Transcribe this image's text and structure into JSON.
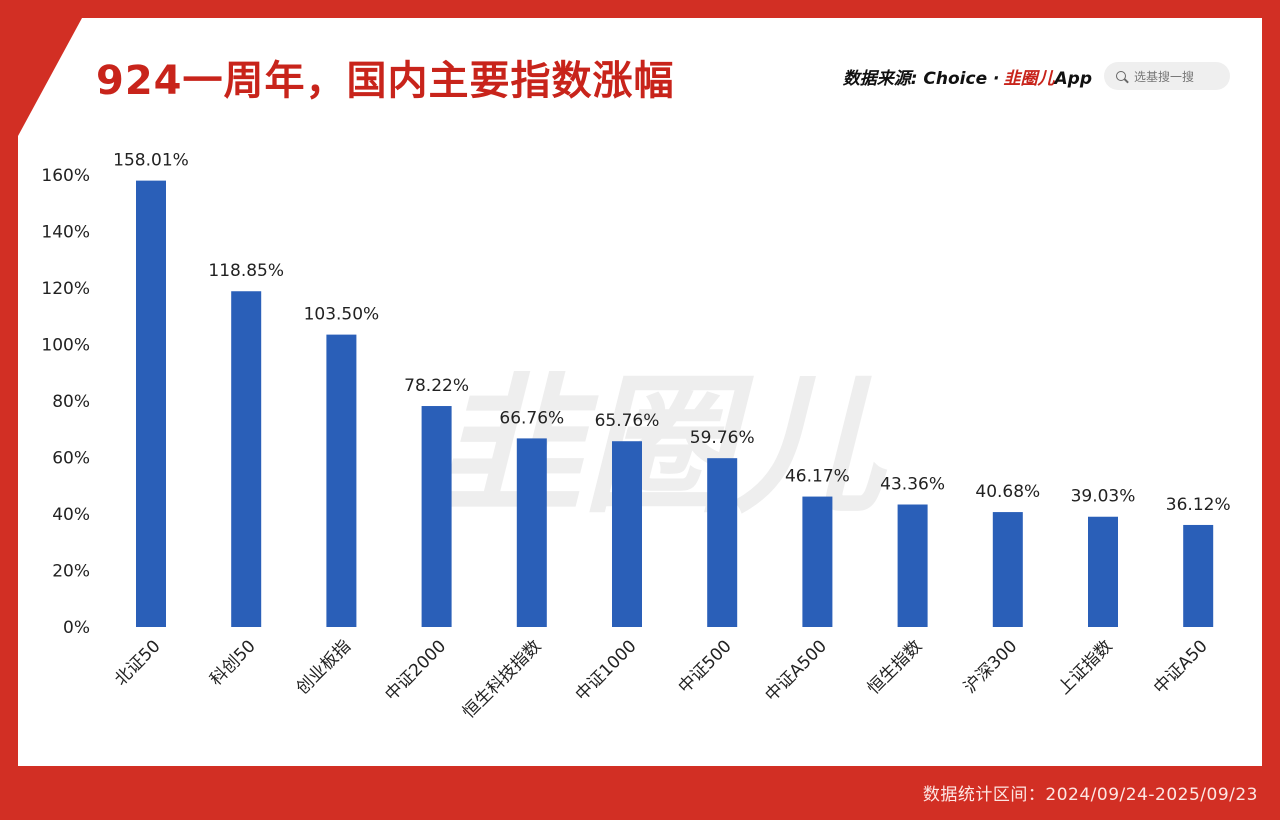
{
  "header": {
    "title": "924一周年，国内主要指数涨幅",
    "source_label": "数据来源: Choice ·",
    "source_brand_red": "韭圈儿",
    "source_brand_rest": "App",
    "search_placeholder": "选基搜一搜",
    "search_icon": "search-icon"
  },
  "footer": {
    "period": "数据统计区间：2024/09/24-2025/09/23"
  },
  "watermark": "韭圈儿",
  "colors": {
    "bar": "#2a5fb8",
    "accent": "#c8241b",
    "frame": "#d22f24"
  },
  "chart_data": {
    "type": "bar",
    "title": "924一周年，国内主要指数涨幅",
    "xlabel": "",
    "ylabel": "",
    "categories": [
      "北证50",
      "科创50",
      "创业板指",
      "中证2000",
      "恒生科技指数",
      "中证1000",
      "中证500",
      "中证A500",
      "恒生指数",
      "沪深300",
      "上证指数",
      "中证A50"
    ],
    "values": [
      158.01,
      118.85,
      103.5,
      78.22,
      66.76,
      65.76,
      59.76,
      46.17,
      43.36,
      40.68,
      39.03,
      36.12
    ],
    "value_labels": [
      "158.01%",
      "118.85%",
      "103.50%",
      "78.22%",
      "66.76%",
      "65.76%",
      "59.76%",
      "46.17%",
      "43.36%",
      "40.68%",
      "39.03%",
      "36.12%"
    ],
    "yticks": [
      "0%",
      "20%",
      "40%",
      "60%",
      "80%",
      "100%",
      "120%",
      "140%",
      "160%"
    ],
    "ylim": [
      0,
      160
    ],
    "grid": false,
    "legend": "none"
  }
}
